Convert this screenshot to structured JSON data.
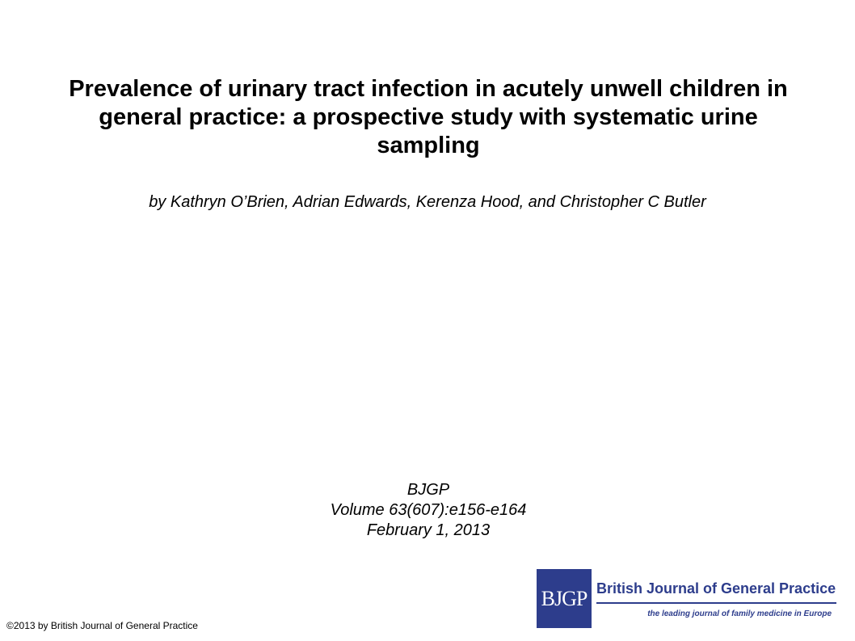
{
  "title": "Prevalence of urinary tract infection in acutely unwell children in general practice: a prospective study with systematic urine sampling",
  "authors": "by Kathryn O’Brien, Adrian Edwards, Kerenza Hood, and Christopher C Butler",
  "citation": {
    "journal": "BJGP",
    "volume": "Volume 63(607):e156-e164",
    "date": "February 1, 2013"
  },
  "copyright": "©2013 by British Journal of General Practice",
  "banner": {
    "logo_text": "BJGP",
    "journal_name": "British Journal of General Practice",
    "tagline": "the leading journal of family medicine in Europe",
    "brand_color": "#2d3d8c"
  }
}
